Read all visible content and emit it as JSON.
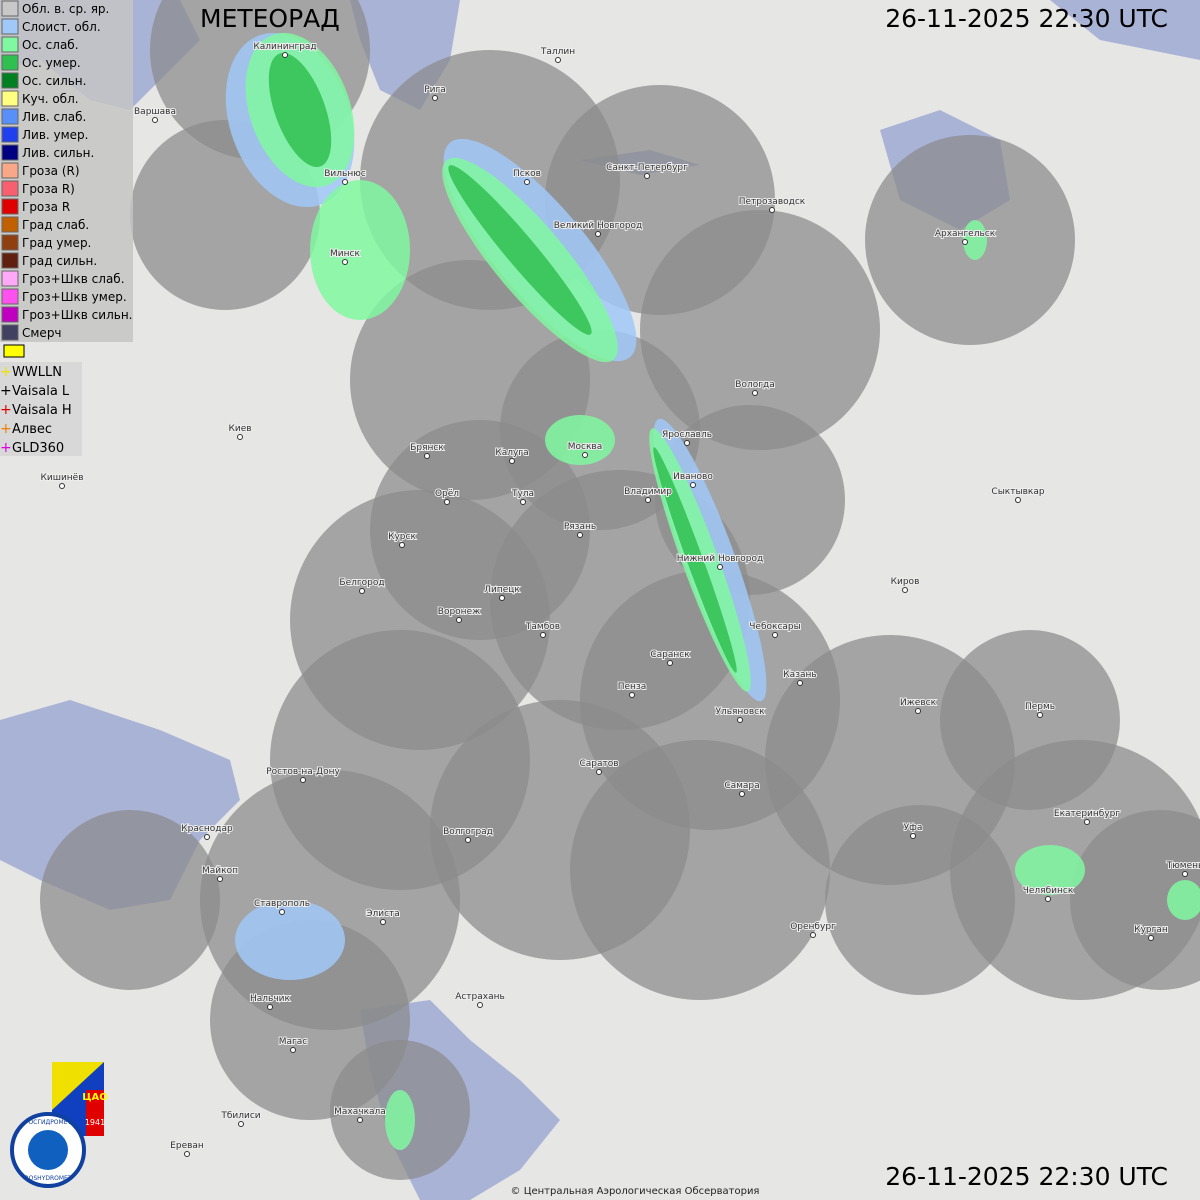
{
  "header": {
    "title": "МЕТЕОРАД",
    "timestamp": "26-11-2025  22:30 UTC"
  },
  "legend": {
    "items": [
      {
        "label": "Обл. в. ср. яр.",
        "color": "#c8c8c8"
      },
      {
        "label": "Слоист. обл.",
        "color": "#a0c8f8"
      },
      {
        "label": "Ос. слаб.",
        "color": "#80f8a0"
      },
      {
        "label": "Ос. умер.",
        "color": "#30c050"
      },
      {
        "label": "Ос. сильн.",
        "color": "#008020"
      },
      {
        "label": "Куч. обл.",
        "color": "#ffff80"
      },
      {
        "label": "Лив. слаб.",
        "color": "#5890f8"
      },
      {
        "label": "Лив. умер.",
        "color": "#2040f0"
      },
      {
        "label": "Лив. сильн.",
        "color": "#000080"
      },
      {
        "label": "Гроза (R)",
        "color": "#f8a888"
      },
      {
        "label": "Гроза R)",
        "color": "#f86070"
      },
      {
        "label": "Гроза R",
        "color": "#e00000"
      },
      {
        "label": "Град слаб.",
        "color": "#c06000"
      },
      {
        "label": "Град умер.",
        "color": "#904010"
      },
      {
        "label": "Град сильн.",
        "color": "#602010"
      },
      {
        "label": "Гроз+Шкв слаб.",
        "color": "#ffa8f8"
      },
      {
        "label": "Гроз+Шкв умер.",
        "color": "#ff50f0"
      },
      {
        "label": "Гроз+Шкв сильн.",
        "color": "#c000c0"
      },
      {
        "label": "Смерч",
        "color": "#404060"
      }
    ],
    "lightning": [
      {
        "label": "WWLLN",
        "color": "#f0e000"
      },
      {
        "label": "Vaisala L",
        "color": "#000000"
      },
      {
        "label": "Vaisala H",
        "color": "#e00000"
      },
      {
        "label": "Алвес",
        "color": "#f08000"
      },
      {
        "label": "GLD360",
        "color": "#e000e0"
      }
    ]
  },
  "cities": [
    "Калининград",
    "Варшава",
    "Рига",
    "Таллин",
    "Вильнюс",
    "Минск",
    "Псков",
    "Санкт-Петербург",
    "Великий Новгород",
    "Петрозаводск",
    "Архангельск",
    "Вологда",
    "Ярославль",
    "Москва",
    "Калуга",
    "Брянск",
    "Киев",
    "Кишинёв",
    "Иваново",
    "Владимир",
    "Тула",
    "Орёл",
    "Рязань",
    "Курск",
    "Нижний Новгород",
    "Сыктывкар",
    "Киров",
    "Белгород",
    "Липецк",
    "Воронеж",
    "Тамбов",
    "Чебоксары",
    "Саранск",
    "Казань",
    "Пенза",
    "Ижевск",
    "Пермь",
    "Ульяновск",
    "Саратов",
    "Ростов-на-Дону",
    "Самара",
    "Краснодар",
    "Волгоград",
    "Уфа",
    "Екатеринбург",
    "Майкоп",
    "Ставрополь",
    "Элиста",
    "Челябинск",
    "Оренбург",
    "Курган",
    "Тюмень",
    "Астрахань",
    "Нальчик",
    "Магас",
    "Тбилиси",
    "Махачкала",
    "Ереван"
  ],
  "logo": {
    "org": "ЦАО",
    "year": "1941",
    "name": "РОСГИДРОМЕТ",
    "name_en": "ROSHYDROMET"
  },
  "footer": {
    "copyright": "© Центральная Аэрологическая Обсерватория"
  }
}
